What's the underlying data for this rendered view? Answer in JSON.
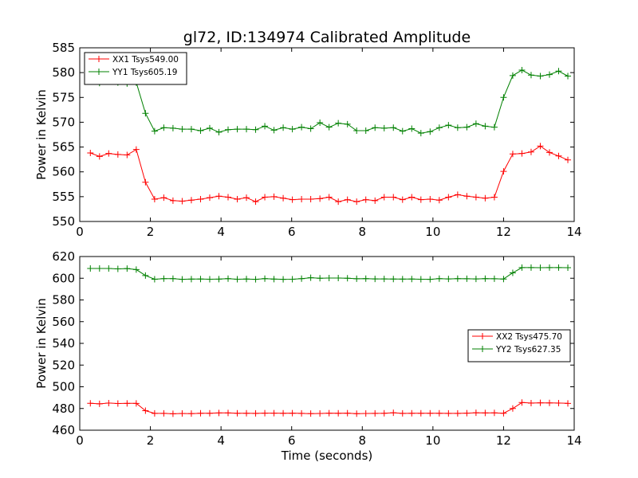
{
  "figure_title": "gl72, ID:134974 Calibrated Amplitude",
  "chart_data": [
    {
      "type": "line",
      "title": "gl72, ID:134974 Calibrated Amplitude",
      "xlabel": "",
      "ylabel": "Power in Kelvin",
      "xlim": [
        0,
        14
      ],
      "ylim": [
        550,
        585
      ],
      "xticks": [
        0,
        2,
        4,
        6,
        8,
        10,
        12,
        14
      ],
      "yticks": [
        550,
        555,
        560,
        565,
        570,
        575,
        580,
        585
      ],
      "grid": false,
      "legend_position": "top-left",
      "x": [
        0.3,
        0.56,
        0.82,
        1.08,
        1.34,
        1.6,
        1.86,
        2.12,
        2.38,
        2.64,
        2.9,
        3.16,
        3.42,
        3.68,
        3.94,
        4.2,
        4.46,
        4.72,
        4.98,
        5.24,
        5.5,
        5.76,
        6.02,
        6.28,
        6.54,
        6.8,
        7.06,
        7.32,
        7.58,
        7.84,
        8.1,
        8.36,
        8.62,
        8.88,
        9.14,
        9.4,
        9.66,
        9.92,
        10.18,
        10.44,
        10.7,
        10.96,
        11.22,
        11.48,
        11.74,
        12.0,
        12.26,
        12.52,
        12.78,
        13.04,
        13.3,
        13.56,
        13.82
      ],
      "series": [
        {
          "name": "XX1 Tsys549.00",
          "color": "#ff0000",
          "values": [
            563.8,
            563.1,
            563.7,
            563.5,
            563.4,
            564.5,
            557.9,
            554.5,
            554.8,
            554.2,
            554.1,
            554.3,
            554.5,
            554.8,
            555.1,
            554.9,
            554.5,
            554.8,
            554.0,
            554.9,
            555.0,
            554.7,
            554.4,
            554.5,
            554.5,
            554.6,
            554.9,
            554.0,
            554.4,
            554.0,
            554.4,
            554.2,
            554.9,
            554.9,
            554.4,
            554.9,
            554.4,
            554.5,
            554.3,
            554.9,
            555.4,
            555.1,
            554.9,
            554.7,
            554.9,
            560.1,
            563.6,
            563.7,
            564.0,
            565.2,
            563.9,
            563.2,
            562.4
          ]
        },
        {
          "name": "YY1 Tsys605.19",
          "color": "#008000",
          "values": [
            578.3,
            577.9,
            578.5,
            578.0,
            577.8,
            578.0,
            571.8,
            568.2,
            568.9,
            568.8,
            568.6,
            568.6,
            568.3,
            568.8,
            568.0,
            568.5,
            568.6,
            568.6,
            568.5,
            569.2,
            568.4,
            568.9,
            568.6,
            569.0,
            568.7,
            569.9,
            569.0,
            569.8,
            569.6,
            568.3,
            568.3,
            568.9,
            568.8,
            568.9,
            568.2,
            568.7,
            567.8,
            568.1,
            568.9,
            569.4,
            568.9,
            569.0,
            569.7,
            569.2,
            569.0,
            575.0,
            579.4,
            580.5,
            579.5,
            579.3,
            579.6,
            580.3,
            579.3
          ]
        }
      ]
    },
    {
      "type": "line",
      "title": "",
      "xlabel": "Time (seconds)",
      "ylabel": "Power in Kelvin",
      "xlim": [
        0,
        14
      ],
      "ylim": [
        460,
        620
      ],
      "xticks": [
        0,
        2,
        4,
        6,
        8,
        10,
        12,
        14
      ],
      "yticks": [
        460,
        480,
        500,
        520,
        540,
        560,
        580,
        600,
        620
      ],
      "grid": false,
      "legend_position": "center-right",
      "x": [
        0.3,
        0.56,
        0.82,
        1.08,
        1.34,
        1.6,
        1.86,
        2.12,
        2.38,
        2.64,
        2.9,
        3.16,
        3.42,
        3.68,
        3.94,
        4.2,
        4.46,
        4.72,
        4.98,
        5.24,
        5.5,
        5.76,
        6.02,
        6.28,
        6.54,
        6.8,
        7.06,
        7.32,
        7.58,
        7.84,
        8.1,
        8.36,
        8.62,
        8.88,
        9.14,
        9.4,
        9.66,
        9.92,
        10.18,
        10.44,
        10.7,
        10.96,
        11.22,
        11.48,
        11.74,
        12.0,
        12.26,
        12.52,
        12.78,
        13.04,
        13.3,
        13.56,
        13.82
      ],
      "series": [
        {
          "name": "XX2 Tsys475.70",
          "color": "#ff0000",
          "values": [
            484.8,
            484.3,
            485.0,
            484.6,
            484.7,
            484.7,
            478.0,
            475.5,
            475.5,
            475.1,
            475.4,
            475.3,
            475.6,
            475.6,
            475.9,
            475.9,
            475.6,
            475.6,
            475.5,
            475.7,
            475.7,
            475.6,
            475.7,
            475.5,
            475.3,
            475.4,
            475.7,
            475.6,
            475.7,
            475.2,
            475.4,
            475.5,
            475.6,
            476.1,
            475.5,
            475.6,
            475.6,
            475.6,
            475.6,
            475.5,
            475.5,
            475.7,
            476.1,
            475.9,
            476.0,
            475.6,
            480.0,
            485.5,
            485.0,
            485.2,
            485.1,
            485.0,
            484.7
          ]
        },
        {
          "name": "YY2 Tsys627.35",
          "color": "#008000",
          "values": [
            609.0,
            609.0,
            609.0,
            608.6,
            608.9,
            608.0,
            602.5,
            599.1,
            599.6,
            599.6,
            599.0,
            599.2,
            599.3,
            599.1,
            599.2,
            599.6,
            599.1,
            599.3,
            599.0,
            599.6,
            599.2,
            599.0,
            599.1,
            599.6,
            600.5,
            600.0,
            600.2,
            600.2,
            600.0,
            599.5,
            599.6,
            599.4,
            599.4,
            599.3,
            599.2,
            599.3,
            599.1,
            599.0,
            599.6,
            599.4,
            599.6,
            599.5,
            599.4,
            599.6,
            599.5,
            599.3,
            605.0,
            609.8,
            609.8,
            609.7,
            609.8,
            609.8,
            609.7
          ]
        }
      ]
    }
  ]
}
